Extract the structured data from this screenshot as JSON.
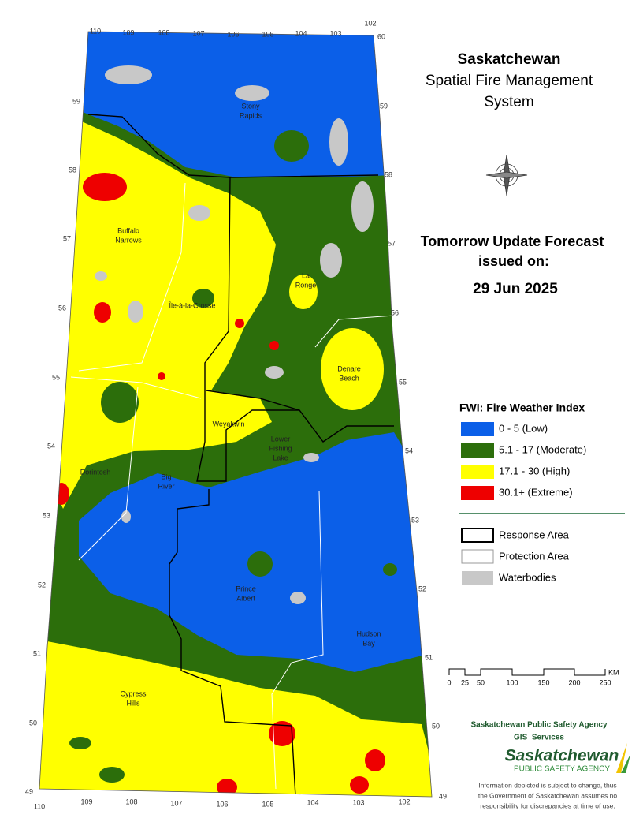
{
  "title": {
    "line1": "Saskatchewan",
    "line2": "Spatial Fire Management",
    "line3": "System"
  },
  "forecast": {
    "line1": "Tomorrow Update Forecast",
    "line2": "issued on:",
    "date": "29 Jun 2025"
  },
  "legend": {
    "title": "FWI: Fire Weather Index",
    "classes": [
      {
        "label": "0 - 5 (Low)",
        "color": "#0b5fe8"
      },
      {
        "label": "5.1 - 17 (Moderate)",
        "color": "#2c6e0b"
      },
      {
        "label": "17.1 - 30 (High)",
        "color": "#ffff00"
      },
      {
        "label": "30.1+ (Extreme)",
        "color": "#ee0000"
      }
    ],
    "boundaries": [
      "Response Area",
      "Protection Area",
      "Waterbodies"
    ]
  },
  "scale": {
    "ticks": [
      "0",
      "25",
      "50",
      "100",
      "150",
      "200",
      "250"
    ],
    "unit": "KM"
  },
  "agency": {
    "name": "Saskatchewan Public Safety Agency",
    "unit": "GIS  Services",
    "logo_line1": "Saskatchewan",
    "logo_line2": "PUBLIC SAFETY AGENCY"
  },
  "disclaimer": [
    "Information depicted is subject to change, thus",
    "the Government of Saskatchewan assumes no",
    "responsibility for discrepancies at time of use."
  ],
  "places": [
    {
      "lines": [
        "Stony",
        "Rapids"
      ]
    },
    {
      "lines": [
        "Buffalo",
        "Narrows"
      ]
    },
    {
      "lines": [
        "Île-à-la-Crosse"
      ]
    },
    {
      "lines": [
        "La",
        "Ronge"
      ]
    },
    {
      "lines": [
        "Denare",
        "Beach"
      ]
    },
    {
      "lines": [
        "Weyakwin"
      ]
    },
    {
      "lines": [
        "Lower",
        "Fishing",
        "Lake"
      ]
    },
    {
      "lines": [
        "Dorintosh"
      ]
    },
    {
      "lines": [
        "Big",
        "River"
      ]
    },
    {
      "lines": [
        "Prince",
        "Albert"
      ]
    },
    {
      "lines": [
        "Hudson",
        "Bay"
      ]
    },
    {
      "lines": [
        "Cypress",
        "Hills"
      ]
    }
  ],
  "longitudes_top": [
    "110",
    "109",
    "108",
    "107",
    "106",
    "105",
    "104",
    "103",
    "102"
  ],
  "longitudes_bottom": [
    "110",
    "109",
    "108",
    "107",
    "106",
    "105",
    "104",
    "103",
    "102"
  ],
  "latitudes_left": [
    "59",
    "58",
    "57",
    "56",
    "55",
    "54",
    "53",
    "52",
    "51",
    "50",
    "49"
  ],
  "latitudes_right": [
    "60",
    "59",
    "58",
    "57",
    "56",
    "55",
    "54",
    "53",
    "52",
    "51",
    "50",
    "49"
  ]
}
